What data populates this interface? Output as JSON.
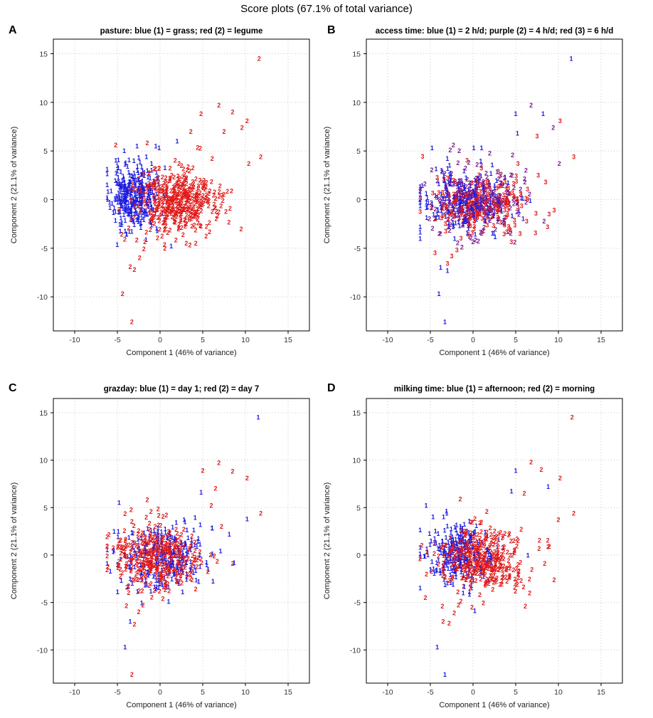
{
  "figure": {
    "title": "Score plots (67.1% of total variance)"
  },
  "colors": {
    "blue": "#1a1ae0",
    "purple": "#7a1a8c",
    "red": "#e01a1a",
    "grid": "#c8c8c8",
    "frame": "#000000"
  },
  "chart_data": [
    {
      "type": "scatter",
      "panel": "A",
      "title": "pasture: blue (1) = grass; red (2) = legume",
      "xlabel": "Component 1 (46% of variance)",
      "ylabel": "Component 2 (21.1% of variance)",
      "xlim": [
        -12.5,
        17.5
      ],
      "ylim": [
        -13.5,
        16.5
      ],
      "xticks": [
        -10,
        -5,
        0,
        5,
        10,
        15
      ],
      "yticks": [
        -10,
        -5,
        0,
        5,
        10,
        15
      ],
      "tick_labels": {
        "x": [
          "-10",
          "-5",
          "0",
          "5",
          "10",
          "15"
        ],
        "y": [
          "-10",
          "-5",
          "0",
          "5",
          "10",
          "15"
        ]
      },
      "grid": true,
      "series": [
        {
          "name": "1",
          "label": "grass",
          "color": "#1a1ae0",
          "cloud": {
            "center": [
              -3.2,
              0.2
            ],
            "spread": [
              1.3,
              1.7
            ],
            "count": 320,
            "seed": 11
          },
          "outliers": [
            [
              -4.2,
              5.0
            ],
            [
              -0.4,
              -3.0
            ],
            [
              1.3,
              -4.8
            ],
            [
              -2.5,
              4.3
            ],
            [
              2.0,
              6.0
            ]
          ]
        },
        {
          "name": "2",
          "label": "legume",
          "color": "#e01a1a",
          "cloud": {
            "center": [
              1.8,
              -0.3
            ],
            "spread": [
              2.3,
              1.7
            ],
            "count": 430,
            "seed": 23
          },
          "outliers": [
            [
              11.6,
              14.5
            ],
            [
              6.9,
              9.7
            ],
            [
              8.5,
              9.0
            ],
            [
              10.2,
              8.1
            ],
            [
              9.6,
              7.4
            ],
            [
              7.5,
              7.0
            ],
            [
              11.8,
              4.4
            ],
            [
              10.4,
              3.7
            ],
            [
              4.8,
              8.8
            ],
            [
              3.6,
              7.0
            ],
            [
              -3.3,
              -12.6
            ],
            [
              -4.4,
              -9.7
            ],
            [
              -3.5,
              -6.9
            ],
            [
              -3.0,
              -7.2
            ],
            [
              -2.4,
              -6.0
            ],
            [
              -1.9,
              -5.1
            ],
            [
              -5.2,
              5.6
            ],
            [
              -1.5,
              5.8
            ],
            [
              8.2,
              -0.9
            ],
            [
              6.1,
              4.2
            ]
          ]
        }
      ]
    },
    {
      "type": "scatter",
      "panel": "B",
      "title": "access time: blue (1) = 2 h/d; purple (2) = 4 h/d; red (3) = 6 h/d",
      "xlabel": "Component 1 (46% of variance)",
      "ylabel": "Component 2 (21.1% of variance)",
      "xlim": [
        -12.5,
        17.5
      ],
      "ylim": [
        -13.5,
        16.5
      ],
      "xticks": [
        -10,
        -5,
        0,
        5,
        10,
        15
      ],
      "yticks": [
        -10,
        -5,
        0,
        5,
        10,
        15
      ],
      "tick_labels": {
        "x": [
          "-10",
          "-5",
          "0",
          "5",
          "10",
          "15"
        ],
        "y": [
          "-10",
          "-5",
          "0",
          "5",
          "10",
          "15"
        ]
      },
      "grid": true,
      "series": [
        {
          "name": "1",
          "label": "2 h/d",
          "color": "#1a1ae0",
          "cloud": {
            "center": [
              -0.8,
              0.0
            ],
            "spread": [
              2.6,
              1.7
            ],
            "count": 240,
            "seed": 31
          },
          "outliers": [
            [
              11.5,
              14.5
            ],
            [
              5.0,
              8.8
            ],
            [
              8.2,
              8.8
            ],
            [
              5.2,
              6.8
            ],
            [
              -4.8,
              5.3
            ],
            [
              -3.3,
              -12.6
            ],
            [
              -4.0,
              -9.7
            ],
            [
              -3.8,
              -7.0
            ],
            [
              -3.0,
              -7.3
            ],
            [
              1.0,
              5.3
            ]
          ]
        },
        {
          "name": "2",
          "label": "4 h/d",
          "color": "#7a1a8c",
          "cloud": {
            "center": [
              0.5,
              -0.2
            ],
            "spread": [
              2.7,
              1.7
            ],
            "count": 240,
            "seed": 37
          },
          "outliers": [
            [
              6.8,
              9.7
            ],
            [
              9.4,
              7.4
            ],
            [
              10.1,
              3.7
            ],
            [
              -2.3,
              5.6
            ],
            [
              6.2,
              3.0
            ],
            [
              4.9,
              -4.4
            ]
          ]
        },
        {
          "name": "3",
          "label": "6 h/d",
          "color": "#e01a1a",
          "cloud": {
            "center": [
              1.0,
              -0.3
            ],
            "spread": [
              2.7,
              1.7
            ],
            "count": 240,
            "seed": 41
          },
          "outliers": [
            [
              10.2,
              8.1
            ],
            [
              11.8,
              4.4
            ],
            [
              7.5,
              6.5
            ],
            [
              8.5,
              1.8
            ],
            [
              -3.0,
              -6.6
            ],
            [
              -2.5,
              -5.8
            ],
            [
              -1.9,
              -5.2
            ],
            [
              5.5,
              -3.5
            ]
          ]
        }
      ]
    },
    {
      "type": "scatter",
      "panel": "C",
      "title": "grazday: blue (1) = day 1; red (2) = day 7",
      "xlabel": "Component 1 (46% of variance)",
      "ylabel": "Component 2 (21.1% of variance)",
      "xlim": [
        -12.5,
        17.5
      ],
      "ylim": [
        -13.5,
        16.5
      ],
      "xticks": [
        -10,
        -5,
        0,
        5,
        10,
        15
      ],
      "yticks": [
        -10,
        -5,
        0,
        5,
        10,
        15
      ],
      "tick_labels": {
        "x": [
          "-10",
          "-5",
          "0",
          "5",
          "10",
          "15"
        ],
        "y": [
          "-10",
          "-5",
          "0",
          "5",
          "10",
          "15"
        ]
      },
      "grid": true,
      "series": [
        {
          "name": "1",
          "label": "day 1",
          "color": "#1a1ae0",
          "cloud": {
            "center": [
              0.2,
              -0.2
            ],
            "spread": [
              2.6,
              1.7
            ],
            "count": 250,
            "seed": 53
          },
          "outliers": [
            [
              11.5,
              14.5
            ],
            [
              4.8,
              6.6
            ],
            [
              -4.8,
              5.5
            ],
            [
              -3.5,
              -7.0
            ],
            [
              -4.1,
              -9.7
            ],
            [
              10.2,
              3.8
            ],
            [
              1.0,
              -4.9
            ]
          ]
        },
        {
          "name": "2",
          "label": "day 7",
          "color": "#e01a1a",
          "cloud": {
            "center": [
              -0.5,
              -0.2
            ],
            "spread": [
              2.7,
              1.7
            ],
            "count": 380,
            "seed": 59
          },
          "outliers": [
            [
              6.9,
              9.7
            ],
            [
              8.5,
              8.8
            ],
            [
              10.2,
              8.1
            ],
            [
              11.8,
              4.4
            ],
            [
              5.0,
              8.9
            ],
            [
              6.5,
              7.0
            ],
            [
              -3.3,
              -12.6
            ],
            [
              -3.0,
              -7.3
            ],
            [
              -2.5,
              -6.0
            ],
            [
              -2.0,
              -5.3
            ],
            [
              8.5,
              -0.9
            ],
            [
              -1.5,
              5.8
            ],
            [
              7.2,
              3.0
            ],
            [
              6.0,
              5.2
            ]
          ]
        }
      ]
    },
    {
      "type": "scatter",
      "panel": "D",
      "title": "milking time: blue (1) = afternoon; red (2) = morning",
      "xlabel": "Component 1 (46% of variance)",
      "ylabel": "Component 2 (21.1% of variance)",
      "xlim": [
        -12.5,
        17.5
      ],
      "ylim": [
        -13.5,
        16.5
      ],
      "xticks": [
        -10,
        -5,
        0,
        5,
        10,
        15
      ],
      "yticks": [
        -10,
        -5,
        0,
        5,
        10,
        15
      ],
      "tick_labels": {
        "x": [
          "-10",
          "-5",
          "0",
          "5",
          "10",
          "15"
        ],
        "y": [
          "-10",
          "-5",
          "0",
          "5",
          "10",
          "15"
        ]
      },
      "grid": true,
      "series": [
        {
          "name": "1",
          "label": "afternoon",
          "color": "#1a1ae0",
          "cloud": {
            "center": [
              -1.8,
              0.3
            ],
            "spread": [
              2.0,
              1.6
            ],
            "count": 260,
            "seed": 67
          },
          "outliers": [
            [
              5.0,
              8.9
            ],
            [
              8.8,
              7.2
            ],
            [
              -3.3,
              -12.6
            ],
            [
              -4.2,
              -9.7
            ],
            [
              4.5,
              6.7
            ],
            [
              -5.5,
              5.2
            ],
            [
              0.2,
              -5.9
            ]
          ]
        },
        {
          "name": "2",
          "label": "morning",
          "color": "#e01a1a",
          "cloud": {
            "center": [
              0.9,
              -0.4
            ],
            "spread": [
              2.6,
              1.7
            ],
            "count": 380,
            "seed": 71
          },
          "outliers": [
            [
              11.6,
              14.5
            ],
            [
              6.8,
              9.8
            ],
            [
              8.0,
              9.0
            ],
            [
              10.2,
              8.1
            ],
            [
              11.8,
              4.4
            ],
            [
              10.0,
              3.7
            ],
            [
              6.0,
              6.5
            ],
            [
              -3.5,
              -7.0
            ],
            [
              -2.8,
              -7.2
            ],
            [
              -2.2,
              -6.1
            ],
            [
              -1.7,
              -5.3
            ],
            [
              -1.5,
              5.9
            ],
            [
              8.4,
              -0.9
            ],
            [
              -6.0,
              1.0
            ]
          ]
        }
      ]
    }
  ]
}
